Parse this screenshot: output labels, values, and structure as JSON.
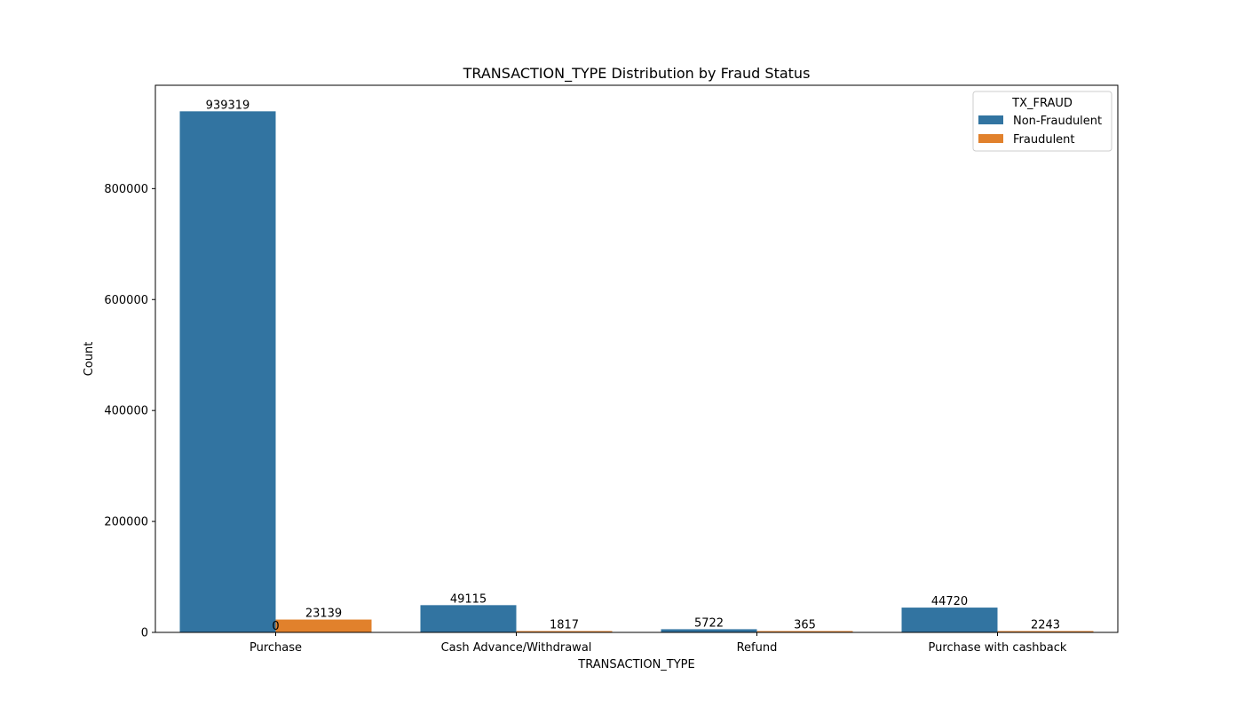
{
  "chart_data": {
    "type": "bar",
    "title": "TRANSACTION_TYPE Distribution by Fraud Status",
    "xlabel": "TRANSACTION_TYPE",
    "ylabel": "Count",
    "categories": [
      "Purchase",
      "Cash Advance/Withdrawal",
      "Refund",
      "Purchase with cashback"
    ],
    "series": [
      {
        "name": "Non-Fraudulent",
        "color": "#3274a1",
        "values": [
          939319,
          49115,
          5722,
          44720
        ],
        "labels": [
          "939319",
          "49115",
          "5722",
          "44720"
        ]
      },
      {
        "name": "Fraudulent",
        "color": "#e1812c",
        "values": [
          23139,
          1817,
          365,
          2243
        ],
        "labels": [
          "23139",
          "1817",
          "365",
          "2243"
        ]
      }
    ],
    "extra_label": "0",
    "ylim": [
      0,
      986285
    ],
    "yticks": [
      0,
      200000,
      400000,
      600000,
      800000
    ],
    "ytick_labels": [
      "0",
      "200000",
      "400000",
      "600000",
      "800000"
    ],
    "legend": {
      "title": "TX_FRAUD",
      "placement": "top-right"
    },
    "grid": false
  }
}
